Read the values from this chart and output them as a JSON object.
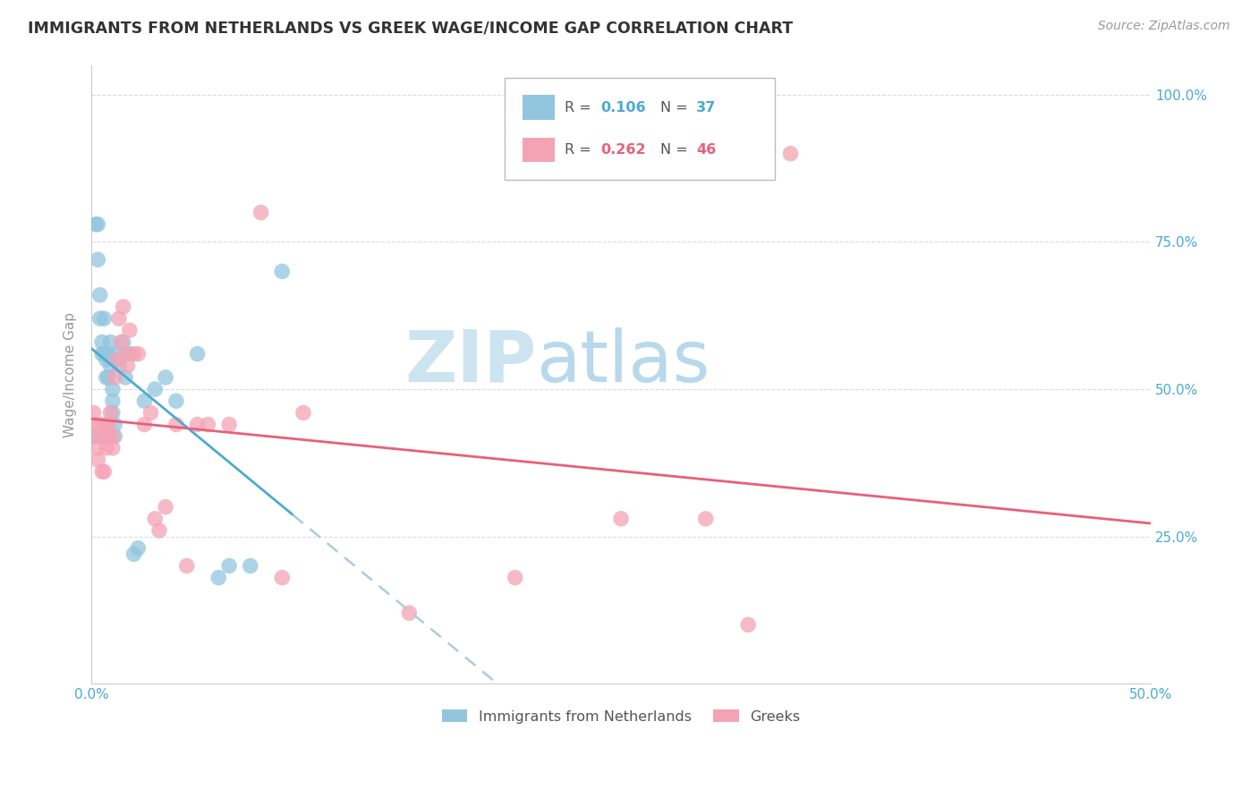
{
  "title": "IMMIGRANTS FROM NETHERLANDS VS GREEK WAGE/INCOME GAP CORRELATION CHART",
  "source": "Source: ZipAtlas.com",
  "ylabel": "Wage/Income Gap",
  "xmin": 0.0,
  "xmax": 0.5,
  "ymin": 0.0,
  "ymax": 1.05,
  "ytick_positions": [
    0.0,
    0.25,
    0.5,
    0.75,
    1.0
  ],
  "ytick_labels": [
    "",
    "25.0%",
    "50.0%",
    "75.0%",
    "100.0%"
  ],
  "xtick_positions": [
    0.0,
    0.1,
    0.2,
    0.3,
    0.4,
    0.5
  ],
  "xtick_labels": [
    "0.0%",
    "",
    "",
    "",
    "",
    "50.0%"
  ],
  "legend_r1_val": "0.106",
  "legend_n1_val": "37",
  "legend_r2_val": "0.262",
  "legend_n2_val": "46",
  "color_blue": "#92c5de",
  "color_pink": "#f4a3b5",
  "color_blue_text": "#4baad3",
  "color_pink_text": "#e8607a",
  "color_axis_text": "#4baad3",
  "watermark_zip_color": "#cce4f0",
  "watermark_atlas_color": "#b8d8eb",
  "blue_x": [
    0.001,
    0.002,
    0.003,
    0.003,
    0.004,
    0.004,
    0.005,
    0.005,
    0.006,
    0.006,
    0.007,
    0.007,
    0.008,
    0.008,
    0.009,
    0.009,
    0.01,
    0.01,
    0.01,
    0.011,
    0.011,
    0.012,
    0.013,
    0.015,
    0.016,
    0.018,
    0.02,
    0.022,
    0.025,
    0.03,
    0.035,
    0.04,
    0.05,
    0.06,
    0.065,
    0.075,
    0.09
  ],
  "blue_y": [
    0.42,
    0.78,
    0.78,
    0.72,
    0.66,
    0.62,
    0.58,
    0.56,
    0.62,
    0.56,
    0.55,
    0.52,
    0.56,
    0.52,
    0.58,
    0.54,
    0.5,
    0.48,
    0.46,
    0.44,
    0.42,
    0.56,
    0.54,
    0.58,
    0.52,
    0.56,
    0.22,
    0.23,
    0.48,
    0.5,
    0.52,
    0.48,
    0.56,
    0.18,
    0.2,
    0.2,
    0.7
  ],
  "pink_x": [
    0.001,
    0.002,
    0.002,
    0.003,
    0.003,
    0.004,
    0.005,
    0.005,
    0.006,
    0.006,
    0.007,
    0.007,
    0.008,
    0.008,
    0.009,
    0.01,
    0.01,
    0.011,
    0.012,
    0.013,
    0.014,
    0.015,
    0.016,
    0.017,
    0.018,
    0.02,
    0.022,
    0.025,
    0.028,
    0.03,
    0.032,
    0.035,
    0.04,
    0.045,
    0.05,
    0.055,
    0.065,
    0.08,
    0.09,
    0.1,
    0.15,
    0.2,
    0.25,
    0.29,
    0.31,
    0.33
  ],
  "pink_y": [
    0.46,
    0.44,
    0.42,
    0.4,
    0.38,
    0.44,
    0.36,
    0.42,
    0.42,
    0.36,
    0.44,
    0.4,
    0.44,
    0.42,
    0.46,
    0.4,
    0.42,
    0.52,
    0.55,
    0.62,
    0.58,
    0.64,
    0.56,
    0.54,
    0.6,
    0.56,
    0.56,
    0.44,
    0.46,
    0.28,
    0.26,
    0.3,
    0.44,
    0.2,
    0.44,
    0.44,
    0.44,
    0.8,
    0.18,
    0.46,
    0.12,
    0.18,
    0.28,
    0.28,
    0.1,
    0.9
  ]
}
